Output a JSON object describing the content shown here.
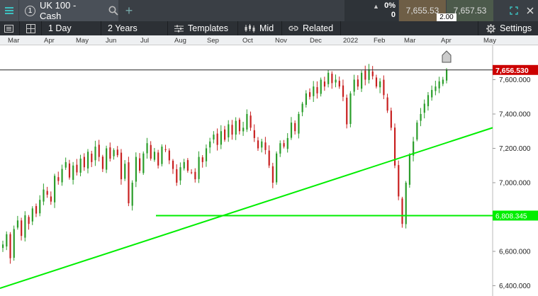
{
  "topbar": {
    "menu_icon": "hamburger-icon",
    "tab_number": "1",
    "instrument": "UK 100 - Cash",
    "search_icon": "search-icon",
    "add_icon": "plus-icon",
    "change_pct": "0%",
    "change_abs": "0",
    "sell_price": "7,655.53",
    "buy_price": "7,657.53",
    "spread": "2.00",
    "expand_icon": "expand-icon",
    "close_icon": "close-icon"
  },
  "toolbar": {
    "interval": "1 Day",
    "range": "2 Years",
    "templates": "Templates",
    "price_type": "Mid",
    "related": "Related",
    "settings": "Settings"
  },
  "months": [
    "Mar",
    "Apr",
    "May",
    "Jun",
    "Jul",
    "Aug",
    "Sep",
    "Oct",
    "Nov",
    "Dec",
    "2022",
    "Feb",
    "Mar",
    "Apr",
    "May"
  ],
  "chart_data": {
    "type": "candlestick",
    "y_ticks": [
      "7,600.000",
      "7,400.000",
      "7,200.000",
      "7,000.000",
      "6,600.000",
      "6,400.000"
    ],
    "y_tick_values": [
      7600,
      7400,
      7200,
      7000,
      6600,
      6400
    ],
    "ylim": [
      6340,
      7800
    ],
    "current_price_label": "7,656.530",
    "current_price": 7656.53,
    "support_label": "6,808.345",
    "support_level": 6808.345,
    "colors": {
      "up": "#2a9d2a",
      "down": "#c82020",
      "trendline": "#00ee00",
      "price_tag": "#cc0000"
    },
    "trendline": {
      "from_price": 6385,
      "to_price": 7320
    },
    "path": [
      6640,
      6700,
      6560,
      6730,
      6780,
      6690,
      6810,
      6760,
      6850,
      6820,
      6900,
      6960,
      6930,
      6890,
      7040,
      7010,
      7080,
      7120,
      7030,
      7100,
      7060,
      7140,
      7090,
      7180,
      7120,
      7210,
      7150,
      7080,
      7200,
      7140,
      7190,
      7160,
      7020,
      7110,
      6880,
      7000,
      7150,
      7070,
      7170,
      7230,
      7140,
      7180,
      7100,
      7210,
      7190,
      7130,
      7080,
      7000,
      7090,
      7120,
      7070,
      7060,
      7020,
      7150,
      7120,
      7200,
      7240,
      7280,
      7220,
      7300,
      7250,
      7340,
      7280,
      7360,
      7300,
      7320,
      7400,
      7320,
      7260,
      7200,
      7240,
      7190,
      7100,
      7000,
      7170,
      7230,
      7210,
      7260,
      7350,
      7300,
      7400,
      7460,
      7520,
      7500,
      7560,
      7520,
      7600,
      7560,
      7640,
      7580,
      7600,
      7560,
      7500,
      7340,
      7520,
      7600,
      7560,
      7640,
      7600,
      7660,
      7620,
      7560,
      7590,
      7510,
      7420,
      7320,
      7100,
      6920,
      6760,
      7000,
      7160,
      7240,
      7350,
      7400,
      7460,
      7510,
      7540,
      7560,
      7590,
      7600,
      7656
    ]
  }
}
